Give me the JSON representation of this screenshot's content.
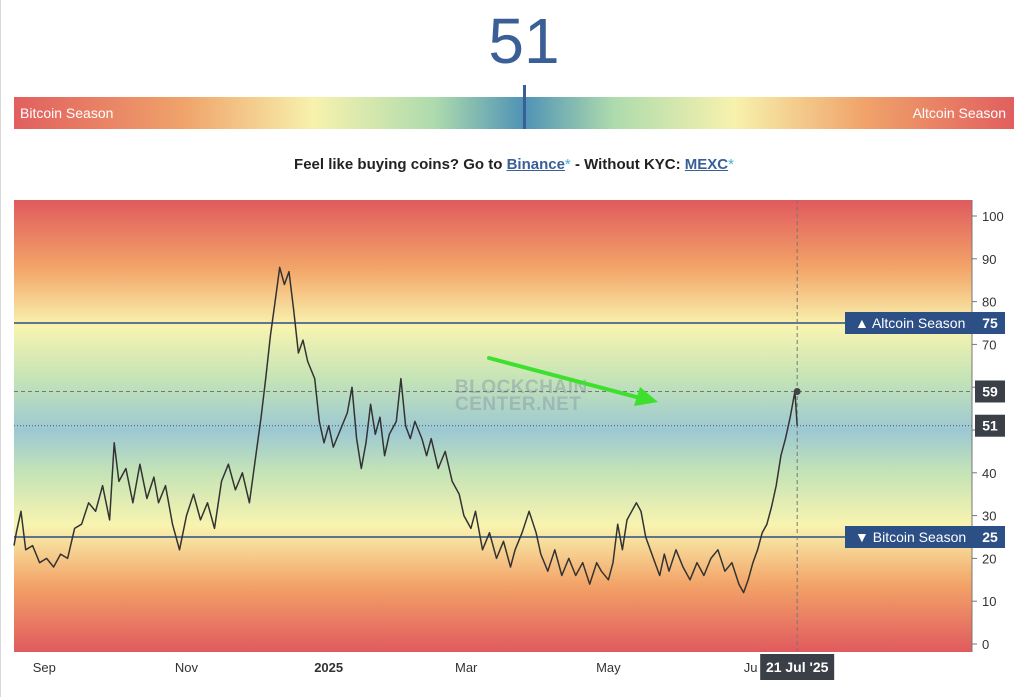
{
  "header": {
    "index_value": "51",
    "bitcoin_season_label": "Bitcoin Season",
    "altcoin_season_label": "Altcoin Season"
  },
  "promo": {
    "prefix": "Feel like buying coins? Go to",
    "binance_label": "Binance",
    "asterisk": "*",
    "separator": "- Without KYC:",
    "mexc_label": "MEXC"
  },
  "chart_data": {
    "type": "line",
    "ylim": [
      0,
      100
    ],
    "y_ticks": [
      "0",
      "10",
      "20",
      "30",
      "40",
      "50",
      "60",
      "70",
      "80",
      "90",
      "100"
    ],
    "x_labels": [
      {
        "label": "Sep",
        "date": "2024-09-01"
      },
      {
        "label": "Nov",
        "date": "2024-11-01"
      },
      {
        "label": "2025",
        "date": "2025-01-01"
      },
      {
        "label": "Mar",
        "date": "2025-03-01"
      },
      {
        "label": "May",
        "date": "2025-05-01"
      },
      {
        "label": "Ju",
        "date": "2025-07-01"
      }
    ],
    "x_range": [
      "2024-08-19",
      "2025-10-04"
    ],
    "reference_lines": [
      {
        "label": "▲ Altcoin Season",
        "value": 75,
        "value_label": "75"
      },
      {
        "label": "▼ Bitcoin Season",
        "value": 25,
        "value_label": "25"
      }
    ],
    "crosshair": {
      "date_label": "21 Jul '25",
      "date": "2025-07-21",
      "dashed_value": 59,
      "dashed_value_label": "59",
      "current_value": 51,
      "current_value_label": "51"
    },
    "watermark": [
      "BLOCKCHAIN",
      "CENTER.NET"
    ],
    "series": [
      {
        "color": "#333333",
        "points": [
          [
            "2024-08-19",
            23
          ],
          [
            "2024-08-20",
            26
          ],
          [
            "2024-08-22",
            31
          ],
          [
            "2024-08-24",
            22
          ],
          [
            "2024-08-27",
            23
          ],
          [
            "2024-08-30",
            19
          ],
          [
            "2024-09-02",
            20
          ],
          [
            "2024-09-05",
            18
          ],
          [
            "2024-09-08",
            21
          ],
          [
            "2024-09-11",
            20
          ],
          [
            "2024-09-14",
            27
          ],
          [
            "2024-09-17",
            28
          ],
          [
            "2024-09-20",
            33
          ],
          [
            "2024-09-23",
            31
          ],
          [
            "2024-09-26",
            37
          ],
          [
            "2024-09-29",
            29
          ],
          [
            "2024-10-01",
            47
          ],
          [
            "2024-10-03",
            38
          ],
          [
            "2024-10-06",
            41
          ],
          [
            "2024-10-09",
            33
          ],
          [
            "2024-10-12",
            42
          ],
          [
            "2024-10-15",
            34
          ],
          [
            "2024-10-18",
            39
          ],
          [
            "2024-10-20",
            33
          ],
          [
            "2024-10-23",
            37
          ],
          [
            "2024-10-26",
            28
          ],
          [
            "2024-10-29",
            22
          ],
          [
            "2024-11-01",
            30
          ],
          [
            "2024-11-04",
            35
          ],
          [
            "2024-11-07",
            29
          ],
          [
            "2024-11-10",
            33
          ],
          [
            "2024-11-13",
            27
          ],
          [
            "2024-11-16",
            38
          ],
          [
            "2024-11-19",
            42
          ],
          [
            "2024-11-22",
            36
          ],
          [
            "2024-11-25",
            40
          ],
          [
            "2024-11-28",
            33
          ],
          [
            "2024-12-01",
            45
          ],
          [
            "2024-12-03",
            53
          ],
          [
            "2024-12-05",
            62
          ],
          [
            "2024-12-07",
            72
          ],
          [
            "2024-12-09",
            80
          ],
          [
            "2024-12-11",
            88
          ],
          [
            "2024-12-13",
            84
          ],
          [
            "2024-12-15",
            87
          ],
          [
            "2024-12-17",
            78
          ],
          [
            "2024-12-19",
            68
          ],
          [
            "2024-12-21",
            71
          ],
          [
            "2024-12-23",
            66
          ],
          [
            "2024-12-26",
            62
          ],
          [
            "2024-12-28",
            52
          ],
          [
            "2024-12-30",
            47
          ],
          [
            "2025-01-01",
            51
          ],
          [
            "2025-01-03",
            46
          ],
          [
            "2025-01-06",
            50
          ],
          [
            "2025-01-09",
            54
          ],
          [
            "2025-01-11",
            60
          ],
          [
            "2025-01-13",
            48
          ],
          [
            "2025-01-15",
            41
          ],
          [
            "2025-01-17",
            47
          ],
          [
            "2025-01-19",
            56
          ],
          [
            "2025-01-21",
            49
          ],
          [
            "2025-01-23",
            53
          ],
          [
            "2025-01-25",
            44
          ],
          [
            "2025-01-27",
            49
          ],
          [
            "2025-01-30",
            52
          ],
          [
            "2025-02-01",
            62
          ],
          [
            "2025-02-03",
            51
          ],
          [
            "2025-02-05",
            48
          ],
          [
            "2025-02-07",
            52
          ],
          [
            "2025-02-10",
            48
          ],
          [
            "2025-02-12",
            44
          ],
          [
            "2025-02-14",
            48
          ],
          [
            "2025-02-17",
            41
          ],
          [
            "2025-02-20",
            45
          ],
          [
            "2025-02-23",
            38
          ],
          [
            "2025-02-26",
            35
          ],
          [
            "2025-02-28",
            30
          ],
          [
            "2025-03-03",
            27
          ],
          [
            "2025-03-05",
            31
          ],
          [
            "2025-03-08",
            22
          ],
          [
            "2025-03-11",
            26
          ],
          [
            "2025-03-14",
            20
          ],
          [
            "2025-03-17",
            24
          ],
          [
            "2025-03-20",
            18
          ],
          [
            "2025-03-22",
            22
          ],
          [
            "2025-03-25",
            26
          ],
          [
            "2025-03-28",
            31
          ],
          [
            "2025-03-31",
            26
          ],
          [
            "2025-04-02",
            21
          ],
          [
            "2025-04-05",
            17
          ],
          [
            "2025-04-08",
            22
          ],
          [
            "2025-04-11",
            16
          ],
          [
            "2025-04-14",
            20
          ],
          [
            "2025-04-17",
            16
          ],
          [
            "2025-04-20",
            19
          ],
          [
            "2025-04-23",
            14
          ],
          [
            "2025-04-26",
            19
          ],
          [
            "2025-04-28",
            17
          ],
          [
            "2025-05-01",
            15
          ],
          [
            "2025-05-03",
            19
          ],
          [
            "2025-05-05",
            28
          ],
          [
            "2025-05-07",
            22
          ],
          [
            "2025-05-09",
            29
          ],
          [
            "2025-05-11",
            31
          ],
          [
            "2025-05-13",
            33
          ],
          [
            "2025-05-15",
            31
          ],
          [
            "2025-05-17",
            25
          ],
          [
            "2025-05-19",
            22
          ],
          [
            "2025-05-21",
            19
          ],
          [
            "2025-05-23",
            16
          ],
          [
            "2025-05-25",
            21
          ],
          [
            "2025-05-27",
            17
          ],
          [
            "2025-05-30",
            22
          ],
          [
            "2025-06-02",
            18
          ],
          [
            "2025-06-05",
            15
          ],
          [
            "2025-06-08",
            19
          ],
          [
            "2025-06-11",
            16
          ],
          [
            "2025-06-14",
            20
          ],
          [
            "2025-06-17",
            22
          ],
          [
            "2025-06-20",
            17
          ],
          [
            "2025-06-23",
            19
          ],
          [
            "2025-06-26",
            14
          ],
          [
            "2025-06-28",
            12
          ],
          [
            "2025-06-30",
            15
          ],
          [
            "2025-07-02",
            19
          ],
          [
            "2025-07-04",
            22
          ],
          [
            "2025-07-06",
            26
          ],
          [
            "2025-07-08",
            28
          ],
          [
            "2025-07-10",
            32
          ],
          [
            "2025-07-12",
            37
          ],
          [
            "2025-07-14",
            44
          ],
          [
            "2025-07-16",
            48
          ],
          [
            "2025-07-18",
            53
          ],
          [
            "2025-07-20",
            59
          ],
          [
            "2025-07-21",
            51
          ]
        ]
      }
    ]
  },
  "colors": {
    "accent": "#3a5f97",
    "line": "#333333",
    "reference_line": "#2c4f86",
    "label_badge": "#2c4f86",
    "crosshair_badge": "#3b3f48",
    "annotation_arrow": "#3ce02d"
  }
}
